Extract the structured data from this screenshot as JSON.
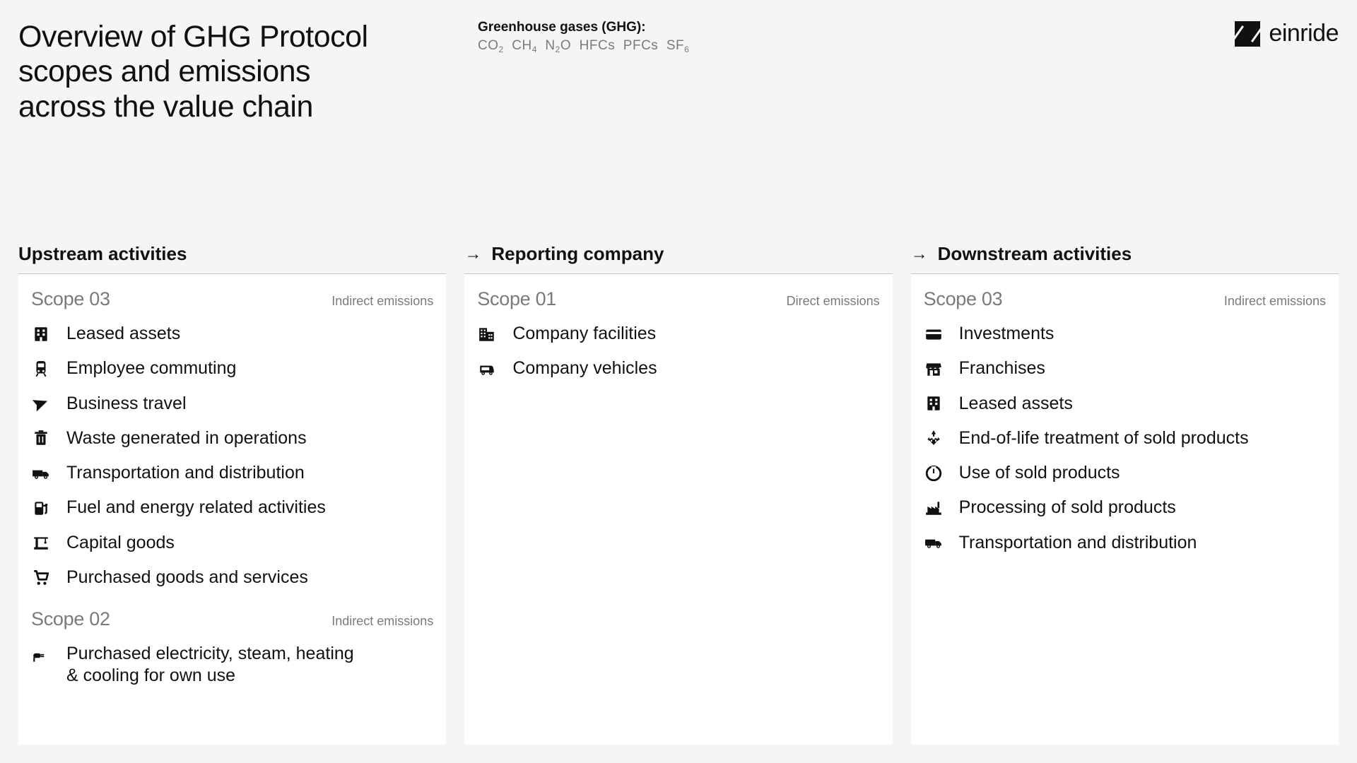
{
  "title": "Overview of GHG Protocol scopes and emissions across the value chain",
  "ghg": {
    "label": "Greenhouse gases (GHG):",
    "list_html": "CO<sub>2</sub>&nbsp;&nbsp;CH<sub>4</sub>&nbsp;&nbsp;N<sub>2</sub>O&nbsp;&nbsp;HFCs&nbsp;&nbsp;PFCs&nbsp;&nbsp;SF<sub>6</sub>"
  },
  "brand": "einride",
  "columns": [
    {
      "heading": "Upstream activities",
      "arrow": false,
      "scopes": [
        {
          "label": "Scope 03",
          "type": "Indirect emissions",
          "items": [
            {
              "icon": "building",
              "label": "Leased assets"
            },
            {
              "icon": "train",
              "label": "Employee commuting"
            },
            {
              "icon": "plane",
              "label": "Business travel"
            },
            {
              "icon": "trash",
              "label": "Waste generated in operations"
            },
            {
              "icon": "truck",
              "label": "Transportation and distribution"
            },
            {
              "icon": "fuel",
              "label": "Fuel and energy related activities"
            },
            {
              "icon": "crane",
              "label": "Capital goods"
            },
            {
              "icon": "cart",
              "label": "Purchased goods and services"
            }
          ]
        },
        {
          "label": "Scope 02",
          "type": "Indirect emissions",
          "items": [
            {
              "icon": "plug",
              "label": "Purchased electricity, steam, heating & cooling for own use",
              "multiline": true
            }
          ]
        }
      ]
    },
    {
      "heading": "Reporting company",
      "arrow": true,
      "scopes": [
        {
          "label": "Scope 01",
          "type": "Direct emissions",
          "items": [
            {
              "icon": "facilities",
              "label": "Company facilities"
            },
            {
              "icon": "van",
              "label": "Company vehicles"
            }
          ]
        }
      ]
    },
    {
      "heading": "Downstream activities",
      "arrow": true,
      "scopes": [
        {
          "label": "Scope 03",
          "type": "Indirect emissions",
          "items": [
            {
              "icon": "card",
              "label": "Investments"
            },
            {
              "icon": "store",
              "label": "Franchises"
            },
            {
              "icon": "building",
              "label": "Leased assets"
            },
            {
              "icon": "recycle",
              "label": "End-of-life treatment of sold products"
            },
            {
              "icon": "power",
              "label": "Use of sold products"
            },
            {
              "icon": "factory",
              "label": "Processing of sold products"
            },
            {
              "icon": "truck",
              "label": "Transportation and distribution"
            }
          ]
        }
      ]
    }
  ]
}
